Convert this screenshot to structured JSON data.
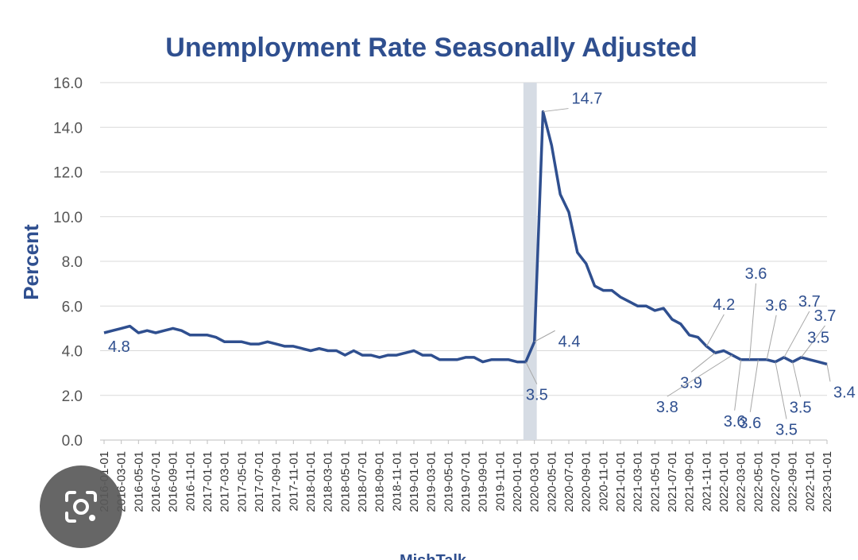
{
  "chart_data": {
    "type": "line",
    "title": "Unemployment Rate Seasonally Adjusted",
    "ylabel": "Percent",
    "xlabel": "",
    "ylim": [
      0,
      16
    ],
    "yticks": [
      "0.0",
      "2.0",
      "4.0",
      "6.0",
      "8.0",
      "10.0",
      "12.0",
      "14.0",
      "16.0"
    ],
    "grid": true,
    "x_start": "2016-01-01",
    "x_tick_labels": [
      "2016-01-01",
      "2016-03-01",
      "2016-05-01",
      "2016-07-01",
      "2016-09-01",
      "2016-11-01",
      "2017-01-01",
      "2017-03-01",
      "2017-05-01",
      "2017-07-01",
      "2017-09-01",
      "2017-11-01",
      "2018-01-01",
      "2018-03-01",
      "2018-05-01",
      "2018-07-01",
      "2018-09-01",
      "2018-11-01",
      "2019-01-01",
      "2019-03-01",
      "2019-05-01",
      "2019-07-01",
      "2019-09-01",
      "2019-11-01",
      "2020-01-01",
      "2020-03-01",
      "2020-05-01",
      "2020-07-01",
      "2020-09-01",
      "2020-11-01",
      "2021-01-01",
      "2021-03-01",
      "2021-05-01",
      "2021-07-01",
      "2021-09-01",
      "2021-11-01",
      "2022-01-01",
      "2022-03-01",
      "2022-05-01",
      "2022-07-01",
      "2022-09-01",
      "2022-11-01",
      "2023-01-01"
    ],
    "series": [
      {
        "name": "Unemployment Rate",
        "color": "#2f4f8f",
        "values": [
          4.8,
          4.9,
          5.0,
          5.1,
          4.8,
          4.9,
          4.8,
          4.9,
          5.0,
          4.9,
          4.7,
          4.7,
          4.7,
          4.6,
          4.4,
          4.4,
          4.4,
          4.3,
          4.3,
          4.4,
          4.3,
          4.2,
          4.2,
          4.1,
          4.0,
          4.1,
          4.0,
          4.0,
          3.8,
          4.0,
          3.8,
          3.8,
          3.7,
          3.8,
          3.8,
          3.9,
          4.0,
          3.8,
          3.8,
          3.6,
          3.6,
          3.6,
          3.7,
          3.7,
          3.5,
          3.6,
          3.6,
          3.6,
          3.5,
          3.5,
          4.4,
          14.7,
          13.2,
          11.0,
          10.2,
          8.4,
          7.9,
          6.9,
          6.7,
          6.7,
          6.4,
          6.2,
          6.0,
          6.0,
          5.8,
          5.9,
          5.4,
          5.2,
          4.7,
          4.6,
          4.2,
          3.9,
          4.0,
          3.8,
          3.6,
          3.6,
          3.6,
          3.6,
          3.5,
          3.7,
          3.5,
          3.7,
          3.6,
          3.5,
          3.4
        ]
      }
    ],
    "shaded_region": {
      "start_index": 49,
      "end_index": 50,
      "color": "#d6dce4"
    },
    "annotations": [
      {
        "text": "4.8",
        "index": 0
      },
      {
        "text": "3.5",
        "index": 49
      },
      {
        "text": "4.4",
        "index": 50
      },
      {
        "text": "14.7",
        "index": 51
      },
      {
        "text": "4.2",
        "index": 70
      },
      {
        "text": "3.9",
        "index": 71
      },
      {
        "text": "3.8",
        "index": 73
      },
      {
        "text": "3.6",
        "index": 74
      },
      {
        "text": "3.6",
        "index": 75
      },
      {
        "text": "3.6",
        "index": 76
      },
      {
        "text": "3.6",
        "index": 77
      },
      {
        "text": "3.5",
        "index": 78
      },
      {
        "text": "3.7",
        "index": 79
      },
      {
        "text": "3.5",
        "index": 80
      },
      {
        "text": "3.7",
        "index": 81
      },
      {
        "text": "3.5",
        "index": 83
      },
      {
        "text": "3.4",
        "index": 84
      }
    ],
    "footer": "MishTalk"
  },
  "icons": {
    "lens": "camera-search-icon"
  }
}
